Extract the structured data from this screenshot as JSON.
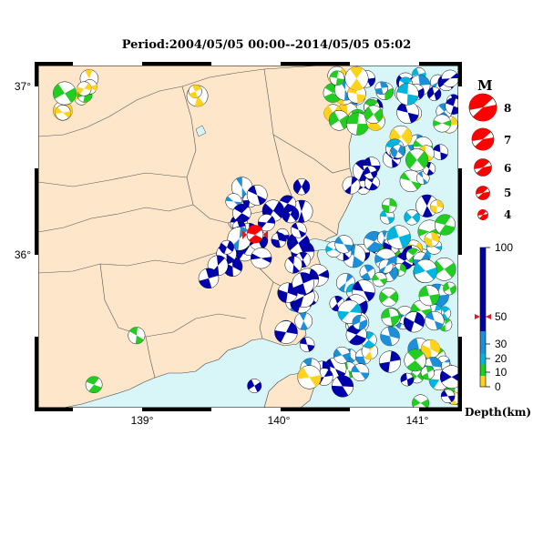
{
  "title": "Period:2004/05/05 00:00--2014/05/05 05:02",
  "axes": {
    "lat_labels": [
      "37°",
      "36°"
    ],
    "lon_labels": [
      "139°",
      "140°",
      "141°"
    ]
  },
  "magnitude_legend": {
    "header": "M",
    "levels": [
      "8",
      "7",
      "6",
      "5",
      "4"
    ]
  },
  "depth_scale": {
    "label": "Depth(km)",
    "ticks": [
      "100",
      "50",
      "30",
      "20",
      "10",
      "0"
    ],
    "colors": {
      "deep": "#0000aa",
      "mid": "#00b4e0",
      "shallow": "#22cc22",
      "surface": "#ffd21e"
    }
  },
  "colors": {
    "land": "#fde6c9",
    "sea": "#d8f6f8",
    "latest_event": "#ff0000",
    "marker": "#e21b1b"
  }
}
